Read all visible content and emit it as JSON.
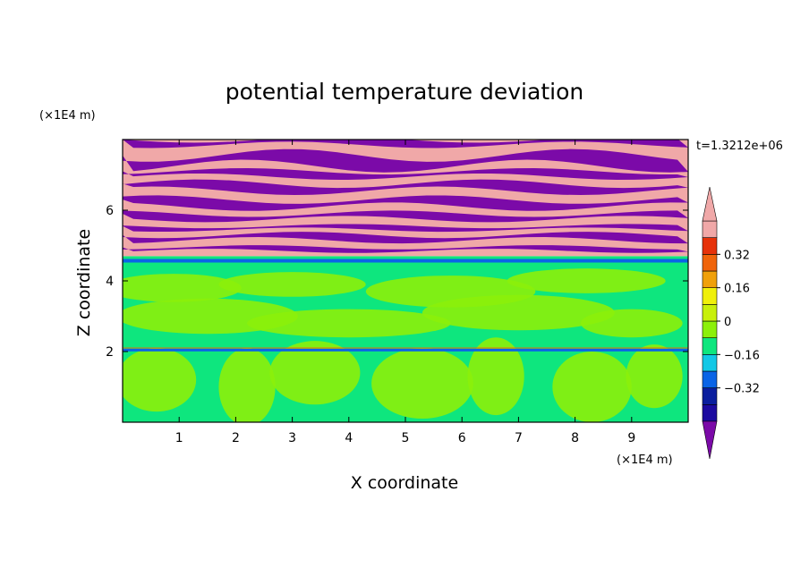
{
  "chart_data": {
    "type": "heatmap",
    "title": "potential temperature deviation",
    "xlabel": "X coordinate",
    "ylabel": "Z coordinate",
    "x_unit": "(×1E4 m)",
    "y_unit": "(×1E4 m)",
    "time_label": "t=1.3212e+06",
    "xlim": [
      0,
      10
    ],
    "ylim": [
      0,
      8
    ],
    "x_ticks": [
      "1",
      "2",
      "3",
      "4",
      "5",
      "6",
      "7",
      "8",
      "9"
    ],
    "y_ticks": [
      "2",
      "4",
      "6"
    ],
    "colorbar": {
      "levels": [
        -0.48,
        -0.4,
        -0.32,
        -0.24,
        -0.16,
        -0.08,
        0,
        0.08,
        0.16,
        0.24,
        0.32,
        0.4,
        0.48
      ],
      "colors": [
        "#7b0aa8",
        "#1c0aa0",
        "#0a1e9e",
        "#0a64e6",
        "#12c8e6",
        "#0ee67e",
        "#8cf00a",
        "#c8f00a",
        "#f0f00a",
        "#f0a00a",
        "#f0640a",
        "#e6320a",
        "#f0a8a8",
        "#f0a8a8"
      ],
      "tick_labels": [
        "0.32",
        "0.16",
        "0",
        "−0.16",
        "−0.32"
      ],
      "tick_values": [
        0.32,
        0.16,
        0,
        -0.16,
        -0.32
      ]
    },
    "bands": [
      {
        "z_from": 0,
        "z_to": 2.0,
        "pattern": "mixed-green",
        "value": 0.04
      },
      {
        "z_from": 2.0,
        "z_to": 2.1,
        "pattern": "thin-layer",
        "value": -0.3
      },
      {
        "z_from": 2.1,
        "z_to": 4.5,
        "pattern": "mixed-green",
        "value": 0.04
      },
      {
        "z_from": 4.5,
        "z_to": 4.7,
        "pattern": "thin-layer",
        "value": -0.2
      },
      {
        "z_from": 4.7,
        "z_to": 8.0,
        "pattern": "stripes",
        "value": 0.0
      }
    ]
  },
  "stripe_colors": {
    "pink": "#f0a8a8",
    "purple": "#7b0aa8",
    "green": "#0ee67e",
    "lime": "#8cf00a"
  }
}
